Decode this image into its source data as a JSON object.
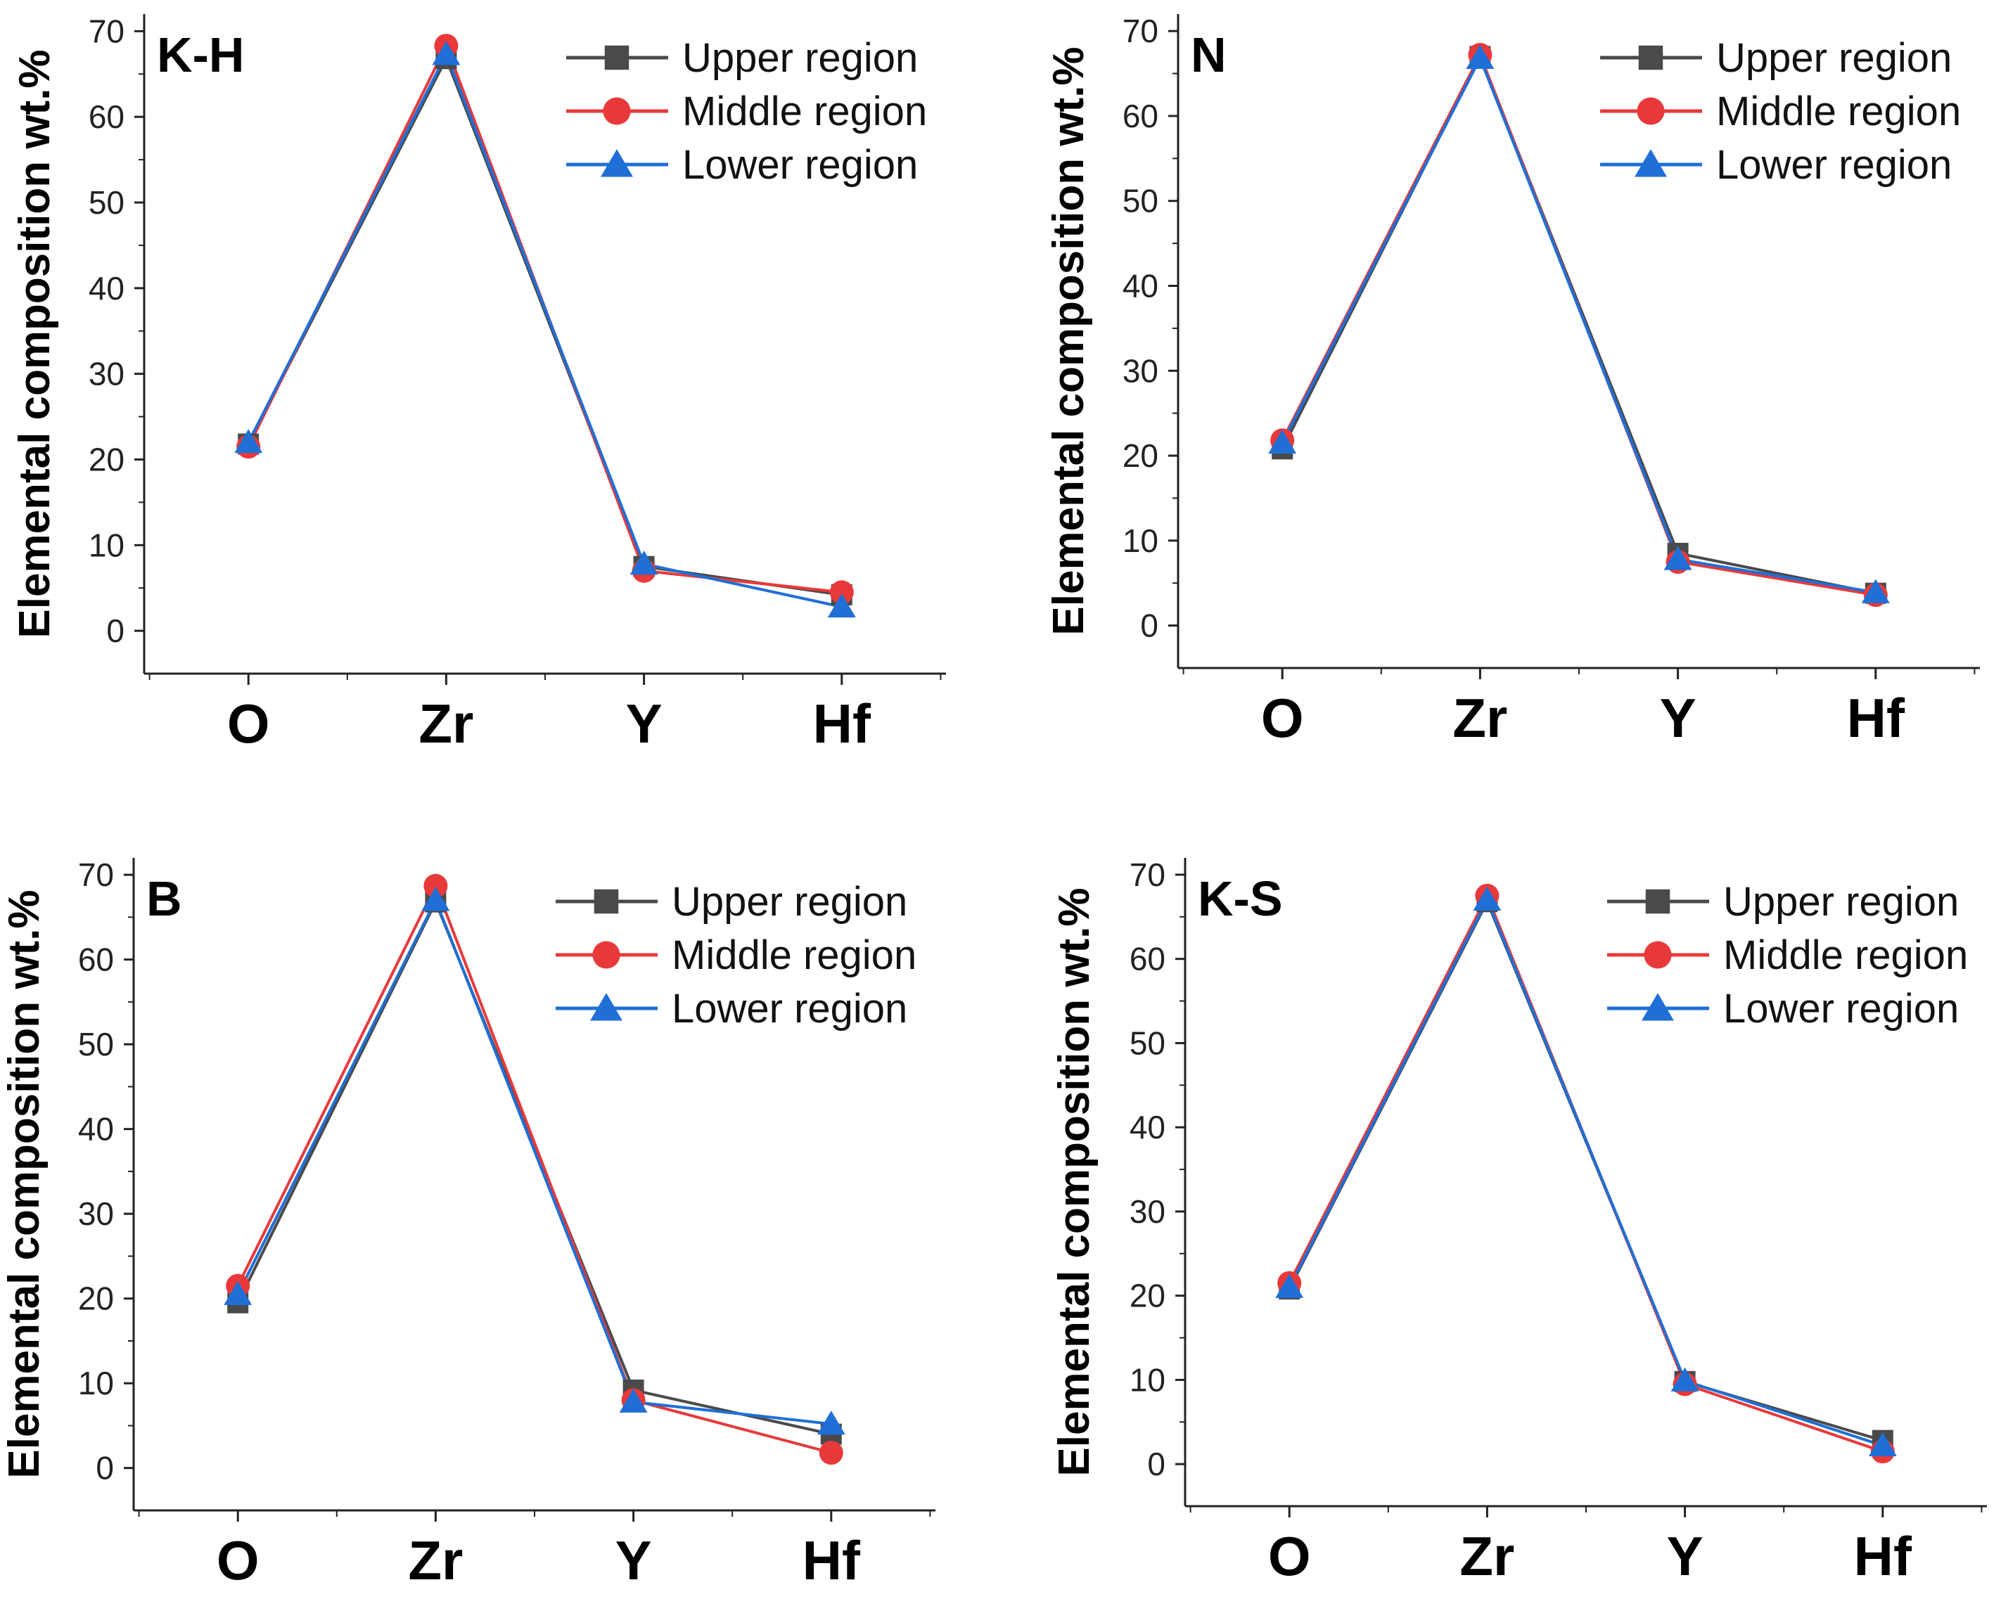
{
  "colors": {
    "upper": "#4a4a4a",
    "middle": "#e8393a",
    "lower": "#1f6fd6",
    "axis": "#222222"
  },
  "chart_data": [
    {
      "type": "line",
      "panel_label": "K-H",
      "categories": [
        "O",
        "Zr",
        "Y",
        "Hf"
      ],
      "ylabel": "Elemental composition wt.%",
      "xlabel": "",
      "ylim": [
        -5,
        72
      ],
      "yticks": [
        0,
        10,
        20,
        30,
        40,
        50,
        60,
        70
      ],
      "ytick_labels": [
        "0",
        "10",
        "20",
        "30",
        "40",
        "50",
        "60",
        "70"
      ],
      "legend_position": "top-right",
      "series": [
        {
          "name": "Upper region",
          "marker": "square",
          "values": [
            21.8,
            66.8,
            7.5,
            4.2
          ]
        },
        {
          "name": "Middle region",
          "marker": "circle",
          "values": [
            21.5,
            68.3,
            7.0,
            4.5
          ]
        },
        {
          "name": "Lower region",
          "marker": "triangle",
          "values": [
            22.0,
            67.3,
            7.8,
            2.8
          ]
        }
      ]
    },
    {
      "type": "line",
      "panel_label": "N",
      "categories": [
        "O",
        "Zr",
        "Y",
        "Hf"
      ],
      "ylabel": "Elemental composition wt.%",
      "xlabel": "",
      "ylim": [
        -5,
        72
      ],
      "yticks": [
        0,
        10,
        20,
        30,
        40,
        50,
        60,
        70
      ],
      "ytick_labels": [
        "0",
        "10",
        "20",
        "30",
        "40",
        "50",
        "60",
        "70"
      ],
      "legend_position": "top-right",
      "series": [
        {
          "name": "Upper region",
          "marker": "square",
          "values": [
            20.8,
            67.0,
            8.5,
            3.8
          ]
        },
        {
          "name": "Middle region",
          "marker": "circle",
          "values": [
            21.8,
            67.2,
            7.5,
            3.6
          ]
        },
        {
          "name": "Lower region",
          "marker": "triangle",
          "values": [
            21.5,
            66.8,
            7.8,
            3.9
          ]
        }
      ]
    },
    {
      "type": "line",
      "panel_label": "B",
      "categories": [
        "O",
        "Zr",
        "Y",
        "Hf"
      ],
      "ylabel": "Elemental composition wt.%",
      "xlabel": "",
      "ylim": [
        -5,
        72
      ],
      "yticks": [
        0,
        10,
        20,
        30,
        40,
        50,
        60,
        70
      ],
      "ytick_labels": [
        "0",
        "10",
        "20",
        "30",
        "40",
        "50",
        "60",
        "70"
      ],
      "legend_position": "top-right",
      "series": [
        {
          "name": "Upper region",
          "marker": "square",
          "values": [
            19.5,
            66.8,
            9.2,
            4.0
          ]
        },
        {
          "name": "Middle region",
          "marker": "circle",
          "values": [
            21.5,
            68.7,
            8.0,
            1.8
          ]
        },
        {
          "name": "Lower region",
          "marker": "triangle",
          "values": [
            20.5,
            67.0,
            7.8,
            5.2
          ]
        }
      ]
    },
    {
      "type": "line",
      "panel_label": "K-S",
      "categories": [
        "O",
        "Zr",
        "Y",
        "Hf"
      ],
      "ylabel": "Elemental composition wt.%",
      "xlabel": "",
      "ylim": [
        -5,
        72
      ],
      "yticks": [
        0,
        10,
        20,
        30,
        40,
        50,
        60,
        70
      ],
      "ytick_labels": [
        "0",
        "10",
        "20",
        "30",
        "40",
        "50",
        "60",
        "70"
      ],
      "legend_position": "top-right",
      "series": [
        {
          "name": "Upper region",
          "marker": "square",
          "values": [
            20.8,
            66.8,
            9.8,
            2.8
          ]
        },
        {
          "name": "Middle region",
          "marker": "circle",
          "values": [
            21.5,
            67.5,
            9.5,
            1.5
          ]
        },
        {
          "name": "Lower region",
          "marker": "triangle",
          "values": [
            21.0,
            67.0,
            9.9,
            2.2
          ]
        }
      ]
    }
  ]
}
